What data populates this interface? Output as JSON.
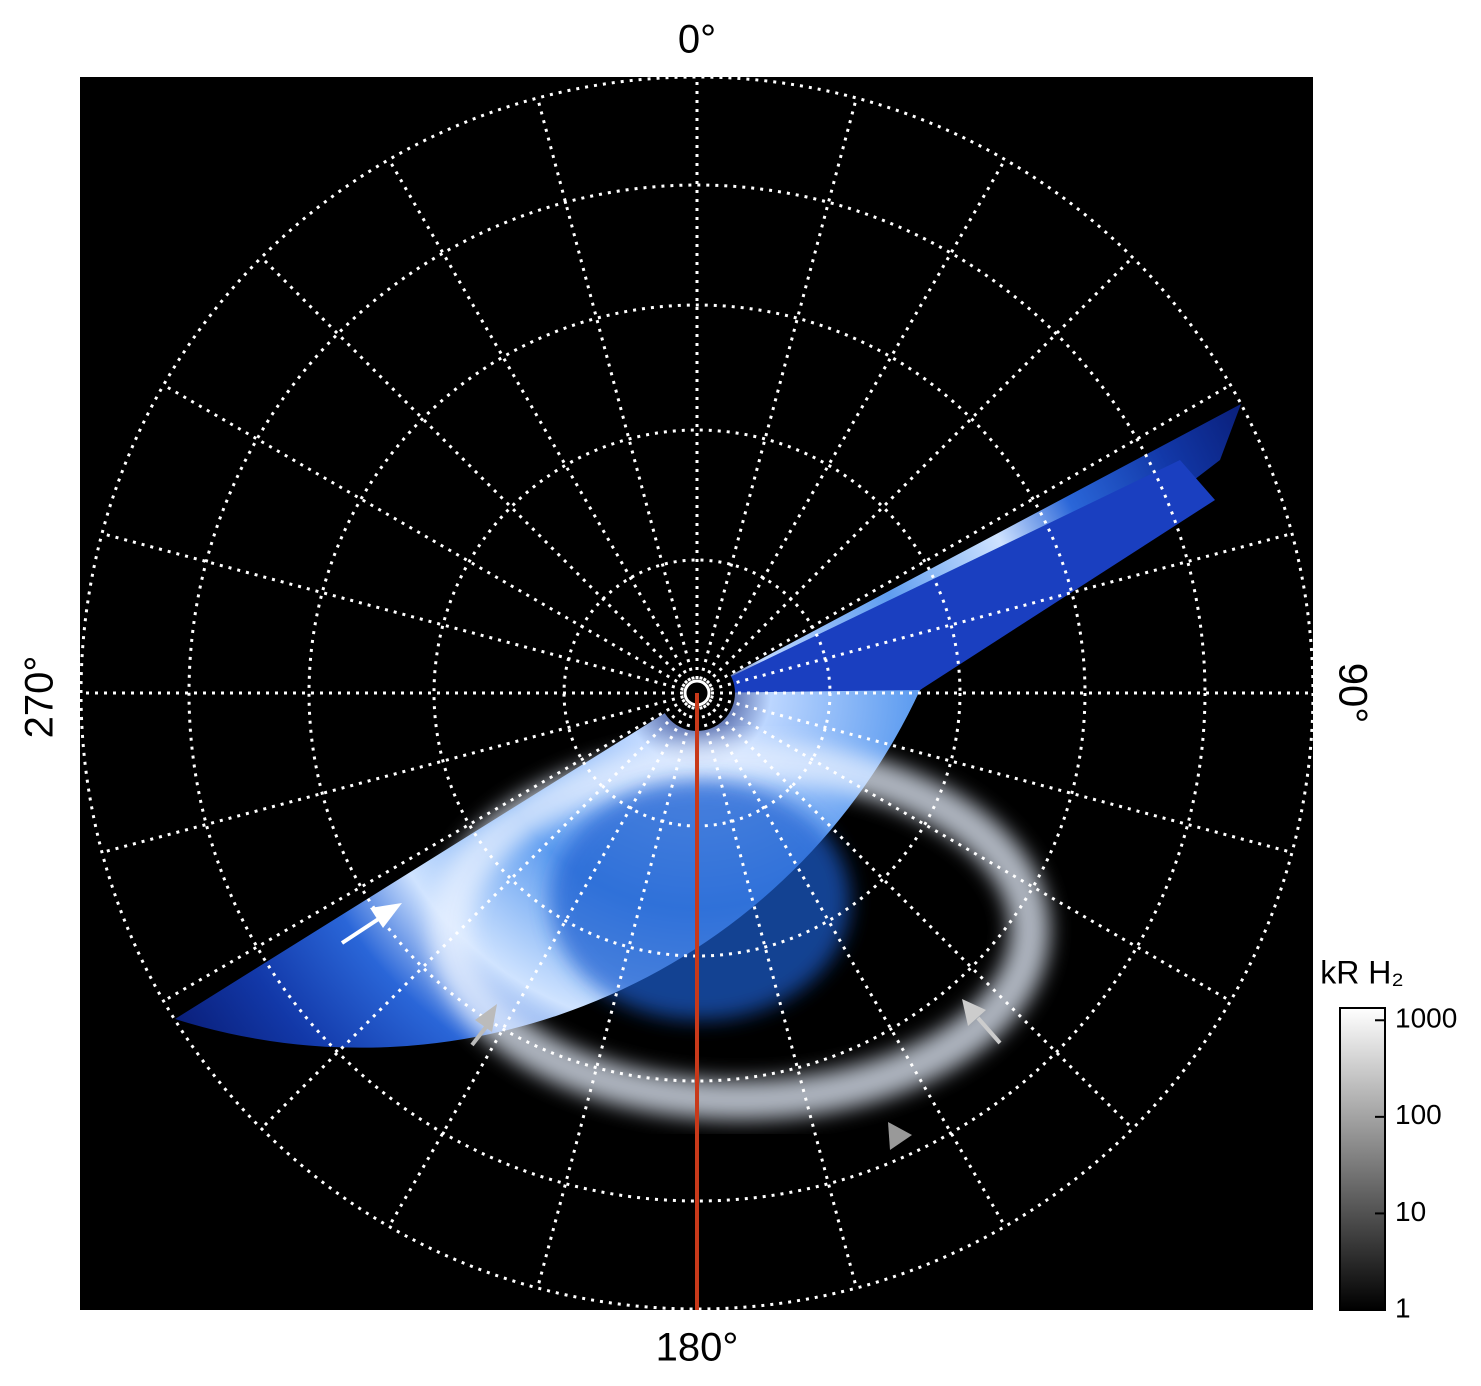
{
  "labels": {
    "top": "0°",
    "right": "90°",
    "bottom": "180°",
    "left": "270°"
  },
  "colorbar": {
    "title": "kR H₂",
    "scale": "log",
    "lim": [
      1,
      1340
    ],
    "ticks": [
      1,
      10,
      100,
      1000
    ]
  }
}
